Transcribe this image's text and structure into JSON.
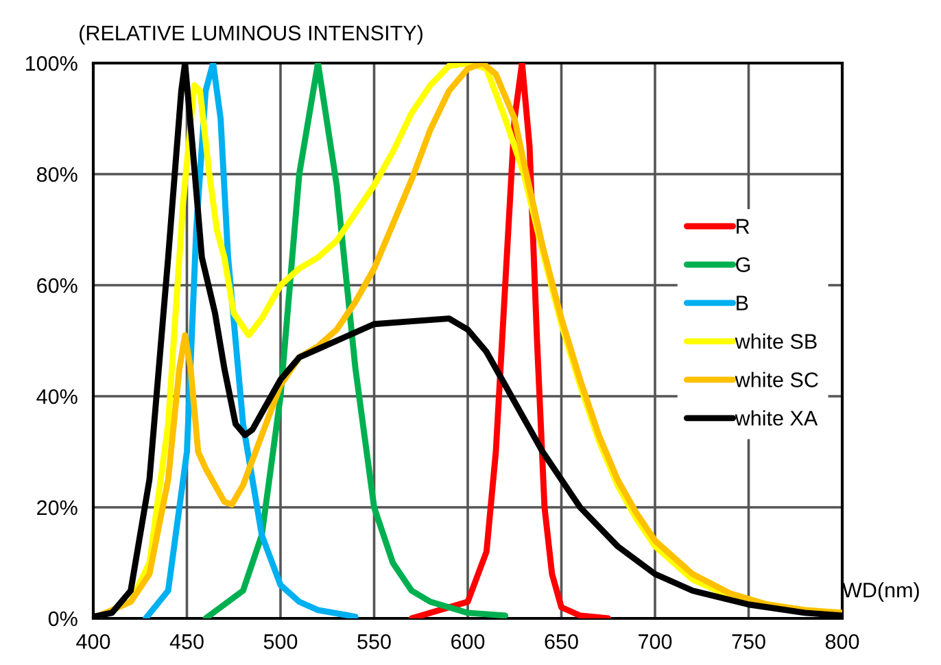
{
  "chart_data": {
    "type": "line",
    "title": "(RELATIVE LUMINOUS INTENSITY)",
    "xlabel": "WD(nm)",
    "xlim": [
      400,
      800
    ],
    "xticks": [
      400,
      450,
      500,
      550,
      600,
      650,
      700,
      750,
      800
    ],
    "ylim": [
      0,
      100
    ],
    "yticks": [
      {
        "value": 0,
        "label": "0%"
      },
      {
        "value": 20,
        "label": "20%"
      },
      {
        "value": 40,
        "label": "40%"
      },
      {
        "value": 60,
        "label": "60%"
      },
      {
        "value": 80,
        "label": "80%"
      },
      {
        "value": 100,
        "label": "100%"
      }
    ],
    "grid": true,
    "legend": "right",
    "marker": "none",
    "line_style": "solid",
    "series": [
      {
        "name": "R",
        "color": "#ff0000",
        "x": [
          570,
          600,
          610,
          615,
          620,
          625,
          629,
          633,
          637,
          641,
          645,
          650,
          660,
          675
        ],
        "values": [
          0,
          3,
          12,
          30,
          60,
          90,
          100,
          85,
          50,
          20,
          8,
          2,
          0.5,
          0
        ]
      },
      {
        "name": "G",
        "color": "#00b050",
        "x": [
          460,
          480,
          490,
          500,
          510,
          520,
          530,
          540,
          550,
          560,
          570,
          580,
          600,
          620
        ],
        "values": [
          0,
          5,
          15,
          40,
          80,
          100,
          78,
          45,
          20,
          10,
          5,
          3,
          1,
          0.5
        ]
      },
      {
        "name": "B",
        "color": "#00b0f0",
        "x": [
          428,
          440,
          450,
          455,
          460,
          464,
          468,
          472,
          480,
          490,
          500,
          510,
          520,
          540
        ],
        "values": [
          0,
          5,
          30,
          70,
          95,
          100,
          90,
          65,
          35,
          15,
          6,
          3,
          1.5,
          0.3
        ]
      },
      {
        "name": "white SB",
        "color": "#ffff00",
        "x": [
          400,
          420,
          430,
          440,
          448,
          454,
          457,
          462,
          466,
          470,
          475,
          483,
          490,
          500,
          510,
          520,
          530,
          540,
          550,
          560,
          570,
          580,
          590,
          600,
          610,
          620,
          630,
          640,
          650,
          660,
          670,
          680,
          690,
          700,
          720,
          740,
          760,
          780,
          800
        ],
        "values": [
          0,
          3,
          10,
          35,
          75,
          96,
          95,
          80,
          70,
          65,
          55,
          51,
          54,
          60,
          63,
          65,
          68,
          73,
          78,
          84,
          91,
          96,
          99.5,
          100,
          99,
          90,
          80,
          66,
          53,
          42,
          32,
          24,
          18,
          13,
          7,
          4,
          2.5,
          1.5,
          1
        ]
      },
      {
        "name": "white SC",
        "color": "#ffc000",
        "x": [
          400,
          420,
          430,
          440,
          446,
          449,
          452,
          456,
          460,
          465,
          470,
          474,
          480,
          490,
          500,
          510,
          520,
          530,
          540,
          550,
          560,
          570,
          580,
          590,
          600,
          608,
          615,
          625,
          630,
          640,
          650,
          660,
          670,
          680,
          690,
          700,
          720,
          740,
          760,
          780,
          800
        ],
        "values": [
          0,
          3,
          8,
          25,
          45,
          51,
          45,
          30,
          27,
          24,
          21,
          20.5,
          24,
          33,
          42,
          47,
          49,
          52,
          57,
          63,
          71,
          79,
          88,
          95,
          99,
          100,
          98,
          90,
          82,
          67,
          54,
          43,
          33,
          25,
          19,
          14,
          8,
          4.5,
          2.5,
          1.5,
          1
        ]
      },
      {
        "name": "white XA",
        "color": "#000000",
        "x": [
          400,
          410,
          420,
          430,
          440,
          447,
          449,
          453,
          458,
          465,
          470,
          476,
          481,
          485,
          490,
          500,
          510,
          520,
          530,
          550,
          570,
          590,
          600,
          610,
          620,
          640,
          660,
          680,
          700,
          720,
          750,
          780,
          800
        ],
        "values": [
          0.3,
          1,
          5,
          25,
          65,
          95,
          100,
          85,
          65,
          55,
          45,
          35,
          33,
          34,
          37,
          43,
          47,
          48.5,
          50,
          53,
          53.5,
          54,
          52,
          48,
          42,
          30,
          20,
          13,
          8,
          5,
          2.5,
          1,
          0.5
        ]
      }
    ]
  }
}
